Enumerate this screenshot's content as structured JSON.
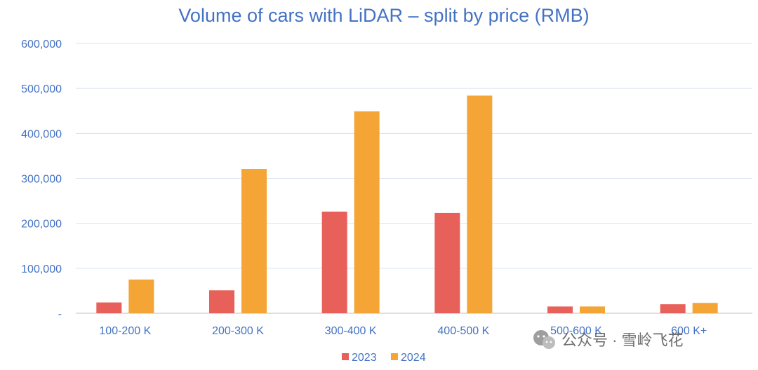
{
  "chart_data": {
    "type": "bar",
    "title": "Volume of cars with LiDAR – split by price (RMB)",
    "categories": [
      "100-200 K",
      "200-300 K",
      "300-400 K",
      "400-500 K",
      "500-600 K",
      "600 K+"
    ],
    "series": [
      {
        "name": "2023",
        "color": "#E8605A",
        "values": [
          24000,
          51000,
          226000,
          223000,
          15000,
          20000
        ]
      },
      {
        "name": "2024",
        "color": "#F4A535",
        "values": [
          75000,
          321000,
          449000,
          484000,
          15000,
          23000
        ]
      }
    ],
    "ylim": [
      0,
      600000
    ],
    "yticks": [
      0,
      100000,
      200000,
      300000,
      400000,
      500000,
      600000
    ],
    "ytick_labels": [
      "-",
      "100,000",
      "200,000",
      "300,000",
      "400,000",
      "500,000",
      "600,000"
    ],
    "grid": true,
    "legend_position": "bottom"
  },
  "watermark": {
    "text": "公众号 · 雪岭飞花",
    "icon": "wechat-icon"
  }
}
